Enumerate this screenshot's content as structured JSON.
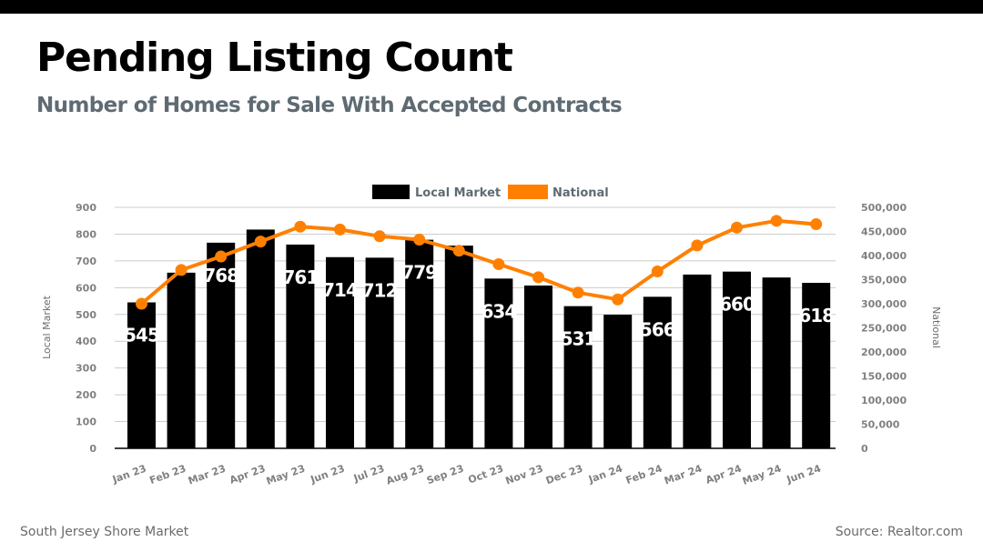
{
  "header": {
    "title": "Pending Listing Count",
    "subtitle": "Number of Homes for Sale With Accepted Contracts"
  },
  "footer": {
    "left": "South Jersey Shore Market",
    "right": "Source: Realtor.com"
  },
  "colors": {
    "local": "#000000",
    "national": "#ff8000",
    "grid": "#cccccc",
    "tick": "#808080"
  },
  "chart_data": {
    "type": "bar",
    "title": "Pending Listing Count",
    "subtitle": "Number of Homes for Sale With Accepted Contracts",
    "categories": [
      "Jan 23",
      "Feb 23",
      "Mar 23",
      "Apr 23",
      "May 23",
      "Jun 23",
      "Jul 23",
      "Aug 23",
      "Sep 23",
      "Oct 23",
      "Nov 23",
      "Dec 23",
      "Jan 24",
      "Feb 24",
      "Mar 24",
      "Apr 24",
      "May 24",
      "Jun 24"
    ],
    "series": [
      {
        "name": "Local Market",
        "type": "bar",
        "axis": "left",
        "values": [
          545,
          656,
          768,
          817,
          761,
          714,
          712,
          779,
          757,
          634,
          608,
          531,
          499,
          566,
          649,
          660,
          638,
          618
        ],
        "data_labels": [
          "545",
          "",
          "768",
          "",
          "761",
          "714",
          "712",
          "779",
          "",
          "634",
          "",
          "531",
          "",
          "566",
          "",
          "660",
          "",
          "618"
        ]
      },
      {
        "name": "National",
        "type": "line",
        "axis": "right",
        "values": [
          300000,
          370000,
          398000,
          429000,
          460000,
          454000,
          440000,
          433000,
          410000,
          382000,
          355000,
          323000,
          309000,
          367000,
          421000,
          458000,
          472000,
          465000
        ]
      }
    ],
    "xlabel": "",
    "ylabel": "Local Market",
    "y2label": "National",
    "ylim": [
      0,
      900
    ],
    "y2lim": [
      0,
      500000
    ],
    "yticks": [
      "0",
      "100",
      "200",
      "300",
      "400",
      "500",
      "600",
      "700",
      "800",
      "900"
    ],
    "y2ticks": [
      "0",
      "50,000",
      "100,000",
      "150,000",
      "200,000",
      "250,000",
      "300,000",
      "350,000",
      "400,000",
      "450,000",
      "500,000"
    ],
    "grid": true,
    "legend": "top-center"
  }
}
